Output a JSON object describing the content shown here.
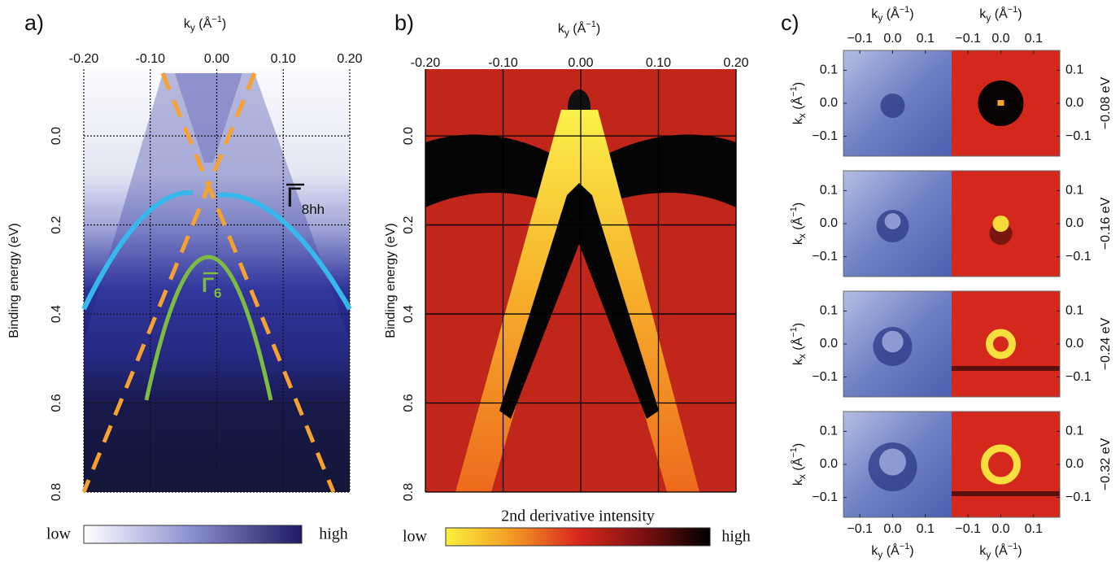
{
  "chart_data": [
    {
      "type": "heatmap",
      "panel": "a)",
      "x_label": [
        "k",
        "y",
        " (Å",
        "−1",
        ")"
      ],
      "y_label": "Binding energy (eV)",
      "xlim": [
        -0.2,
        0.2
      ],
      "xticks": [
        {
          "value": -0.2,
          "label": "-0.20"
        },
        {
          "value": -0.1,
          "label": "-0.10"
        },
        {
          "value": 0,
          "label": "0.00"
        },
        {
          "value": 0.1,
          "label": "0.10"
        },
        {
          "value": 0.2,
          "label": "0.20"
        }
      ],
      "ylim": [
        -0.15,
        0.8
      ],
      "yticks": [
        {
          "value": 0,
          "label": "0.0"
        },
        0.2,
        0.4,
        0.6,
        0.8
      ],
      "grid": "dotted",
      "colorbar": {
        "low": "low",
        "high": "high",
        "colormap": [
          "#ffffff",
          "#8a8fd0",
          "#1c1a63"
        ]
      },
      "annotations": [
        {
          "symbol": "Γ",
          "sub": "8hh",
          "color": "#111111"
        },
        {
          "symbol": "Γ",
          "sub": "6",
          "color": "#7dbb42"
        }
      ]
    },
    {
      "type": "heatmap",
      "panel": "b)",
      "x_label": [
        "k",
        "y",
        " (Å",
        "−1",
        ")"
      ],
      "y_label": "Binding energy (eV)",
      "xlim": [
        -0.2,
        0.2
      ],
      "xticks": [
        {
          "value": -0.2,
          "label": "-0.20"
        },
        {
          "value": -0.1,
          "label": "-0.10"
        },
        {
          "value": 0,
          "label": "0.00"
        },
        {
          "value": 0.1,
          "label": "0.10"
        },
        {
          "value": 0.2,
          "label": "0.20"
        }
      ],
      "ylim": [
        -0.15,
        0.8
      ],
      "yticks": [
        {
          "value": 0,
          "label": "0.0"
        },
        0.2,
        0.4,
        0.6,
        0.8
      ],
      "grid": "solid",
      "colorbar": {
        "title": "2nd derivative intensity",
        "low": "low",
        "high": "high",
        "colormap": [
          "#f8f23c",
          "#f39a25",
          "#d8281e",
          "#7a1010",
          "#000000"
        ]
      }
    },
    {
      "type": "heatmap-grid",
      "panel": "c)",
      "x_label": [
        "k",
        "y",
        " (Å",
        "−1",
        ")"
      ],
      "y_label": [
        "k",
        "x",
        " (Å",
        "−1",
        ")"
      ],
      "xlim": [
        -0.15,
        0.18
      ],
      "xticks": [
        {
          "value": -0.1,
          "label": "−0.1"
        },
        {
          "value": 0,
          "label": "0.0"
        },
        0.1
      ],
      "ylim": [
        -0.16,
        0.16
      ],
      "yticks": [
        0.1,
        {
          "value": 0,
          "label": "0.0"
        },
        {
          "value": -0.1,
          "label": "−0.1"
        }
      ],
      "rows": [
        "−0.08 eV",
        "−0.16 eV",
        "−0.24 eV",
        "−0.32 eV"
      ]
    }
  ]
}
